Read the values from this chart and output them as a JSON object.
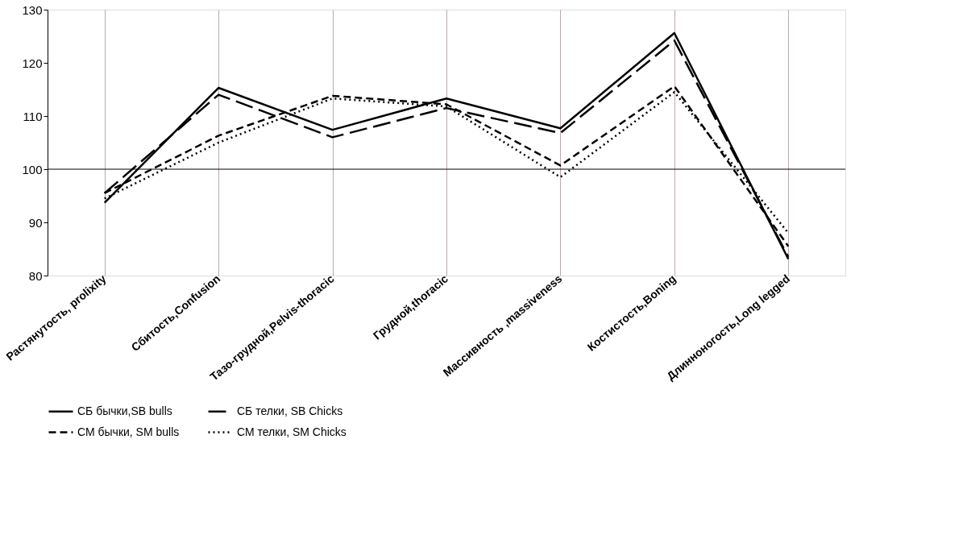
{
  "chart_data": {
    "type": "line",
    "categories": [
      "Растянутость, prolixity",
      "Сбитость,Confusion",
      "Тазо-грудной,Pelvis-thoracic",
      "Грудной,thoracic",
      "Массивность ,massiveness",
      "Костистость,Boning",
      "Длинноногость,Long legged"
    ],
    "series": [
      {
        "name": "СБ бычки,SB bulls",
        "color": "#000000",
        "line_style": "solid",
        "values": [
          93.7,
          115.3,
          107.4,
          113.3,
          107.7,
          125.6,
          83.1
        ]
      },
      {
        "name": "СБ телки, SB Chicks",
        "color": "#000000",
        "line_style": "longdash",
        "values": [
          95.5,
          114.0,
          106.0,
          111.5,
          106.8,
          124.2,
          83.5
        ]
      },
      {
        "name": "СМ бычки, SM bulls",
        "color": "#000000",
        "line_style": "dashed",
        "values": [
          95.5,
          106.3,
          113.8,
          112.2,
          100.7,
          115.6,
          85.5
        ]
      },
      {
        "name": "СМ телки, SM Chicks",
        "color": "#000000",
        "line_style": "dotted",
        "values": [
          94.5,
          105.0,
          113.3,
          111.8,
          98.5,
          114.5,
          88.0
        ]
      }
    ],
    "ylim": [
      80,
      130
    ],
    "yticks": [
      80,
      90,
      100,
      110,
      120,
      130
    ],
    "ref_lines": [
      {
        "axis": "y",
        "value": 100,
        "color": "#000000"
      }
    ],
    "grid": "x",
    "legend": "bottom",
    "marker": "none"
  }
}
